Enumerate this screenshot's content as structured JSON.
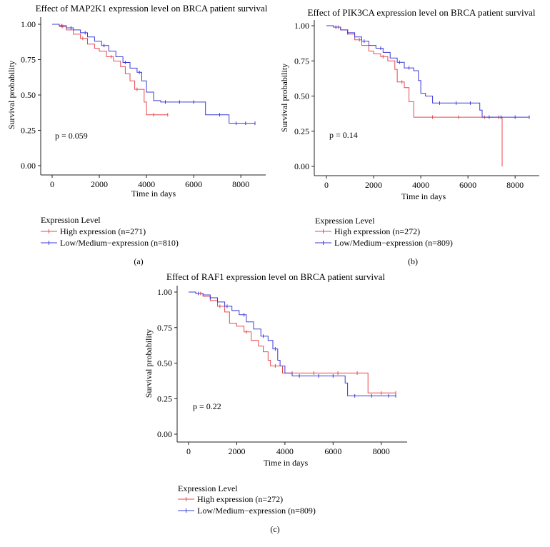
{
  "chart_data": [
    {
      "type": "line",
      "panel_label": "(a)",
      "title": "Effect of MAP2K1 expression level on BRCA patient survival",
      "xlabel": "Time in days",
      "ylabel": "Survival probability",
      "xlim": [
        0,
        8600
      ],
      "ylim": [
        0,
        1
      ],
      "xticks": [
        0,
        2000,
        4000,
        6000,
        8000
      ],
      "xtick_labels": [
        "0",
        "2000",
        "4000",
        "6000",
        "8000"
      ],
      "yticks": [
        0,
        0.25,
        0.5,
        0.75,
        1.0
      ],
      "ytick_labels": [
        "0.00",
        "0.25",
        "0.50",
        "0.75",
        "1.00"
      ],
      "pvalue_text": "p = 0.059",
      "legend_title": "Expression Level",
      "legend_position": "bottom",
      "series": [
        {
          "name": "High expression (n=271)",
          "color": "#e8474e",
          "points": [
            [
              0,
              1.0
            ],
            [
              300,
              0.985
            ],
            [
              600,
              0.96
            ],
            [
              900,
              0.93
            ],
            [
              1200,
              0.9
            ],
            [
              1500,
              0.86
            ],
            [
              1800,
              0.83
            ],
            [
              2000,
              0.81
            ],
            [
              2300,
              0.77
            ],
            [
              2600,
              0.74
            ],
            [
              2900,
              0.7
            ],
            [
              3100,
              0.65
            ],
            [
              3300,
              0.6
            ],
            [
              3500,
              0.54
            ],
            [
              3800,
              0.54
            ],
            [
              3900,
              0.45
            ],
            [
              4000,
              0.36
            ],
            [
              4900,
              0.36
            ]
          ],
          "censor_x": [
            450,
            1300,
            2500,
            3600,
            4300,
            4900
          ]
        },
        {
          "name": "Low/Medium−expression (n=810)",
          "color": "#3b3bd6",
          "points": [
            [
              0,
              1.0
            ],
            [
              300,
              0.99
            ],
            [
              600,
              0.975
            ],
            [
              900,
              0.96
            ],
            [
              1200,
              0.94
            ],
            [
              1500,
              0.91
            ],
            [
              1800,
              0.88
            ],
            [
              2100,
              0.85
            ],
            [
              2400,
              0.81
            ],
            [
              2700,
              0.77
            ],
            [
              3000,
              0.73
            ],
            [
              3300,
              0.69
            ],
            [
              3600,
              0.66
            ],
            [
              3800,
              0.6
            ],
            [
              4000,
              0.52
            ],
            [
              4300,
              0.46
            ],
            [
              4600,
              0.45
            ],
            [
              6300,
              0.45
            ],
            [
              6500,
              0.36
            ],
            [
              7200,
              0.36
            ],
            [
              7500,
              0.3
            ],
            [
              8600,
              0.3
            ]
          ],
          "censor_x": [
            400,
            800,
            1400,
            2200,
            3100,
            3700,
            4800,
            5400,
            6000,
            7100,
            7800,
            8200,
            8600
          ]
        }
      ]
    },
    {
      "type": "line",
      "panel_label": "(b)",
      "title": "Effect of PIK3CA expression level on BRCA patient survival",
      "xlabel": "Time in days",
      "ylabel": "Survival probability",
      "xlim": [
        0,
        8600
      ],
      "ylim": [
        0,
        1
      ],
      "xticks": [
        0,
        2000,
        4000,
        6000,
        8000
      ],
      "xtick_labels": [
        "0",
        "2000",
        "4000",
        "6000",
        "8000"
      ],
      "yticks": [
        0,
        0.25,
        0.5,
        0.75,
        1.0
      ],
      "ytick_labels": [
        "0.00",
        "0.25",
        "0.50",
        "0.75",
        "1.00"
      ],
      "pvalue_text": "p = 0.14",
      "legend_title": "Expression Level",
      "legend_position": "bottom",
      "series": [
        {
          "name": "High expression (n=272)",
          "color": "#e8474e",
          "points": [
            [
              0,
              1.0
            ],
            [
              300,
              0.99
            ],
            [
              600,
              0.97
            ],
            [
              900,
              0.94
            ],
            [
              1200,
              0.9
            ],
            [
              1500,
              0.86
            ],
            [
              1800,
              0.82
            ],
            [
              2000,
              0.8
            ],
            [
              2300,
              0.78
            ],
            [
              2600,
              0.75
            ],
            [
              2900,
              0.69
            ],
            [
              3000,
              0.6
            ],
            [
              3300,
              0.56
            ],
            [
              3500,
              0.46
            ],
            [
              3700,
              0.35
            ],
            [
              7400,
              0.35
            ],
            [
              7450,
              0.0
            ]
          ],
          "censor_x": [
            500,
            1400,
            2400,
            3200,
            4500,
            5600,
            6700,
            7300
          ]
        },
        {
          "name": "Low/Medium−expression (n=809)",
          "color": "#3b3bd6",
          "points": [
            [
              0,
              1.0
            ],
            [
              300,
              0.99
            ],
            [
              600,
              0.97
            ],
            [
              900,
              0.95
            ],
            [
              1200,
              0.92
            ],
            [
              1500,
              0.89
            ],
            [
              1800,
              0.86
            ],
            [
              2100,
              0.84
            ],
            [
              2400,
              0.81
            ],
            [
              2700,
              0.77
            ],
            [
              3000,
              0.74
            ],
            [
              3300,
              0.7
            ],
            [
              3700,
              0.68
            ],
            [
              3900,
              0.61
            ],
            [
              4000,
              0.52
            ],
            [
              4200,
              0.5
            ],
            [
              4500,
              0.45
            ],
            [
              6300,
              0.45
            ],
            [
              6500,
              0.4
            ],
            [
              6600,
              0.35
            ],
            [
              8600,
              0.35
            ]
          ],
          "censor_x": [
            400,
            900,
            1600,
            2300,
            3100,
            3500,
            4800,
            5500,
            6100,
            6900,
            7400,
            8000,
            8600
          ]
        }
      ]
    },
    {
      "type": "line",
      "panel_label": "(c)",
      "title": "Effect of RAF1 expression level on BRCA patient survival",
      "xlabel": "Time in days",
      "ylabel": "Survival probability",
      "xlim": [
        0,
        8600
      ],
      "ylim": [
        0,
        1
      ],
      "xticks": [
        0,
        2000,
        4000,
        6000,
        8000
      ],
      "xtick_labels": [
        "0",
        "2000",
        "4000",
        "6000",
        "8000"
      ],
      "yticks": [
        0,
        0.25,
        0.5,
        0.75,
        1.0
      ],
      "ytick_labels": [
        "0.00",
        "0.25",
        "0.50",
        "0.75",
        "1.00"
      ],
      "pvalue_text": "p = 0.22",
      "legend_title": "Expression Level",
      "legend_position": "bottom",
      "series": [
        {
          "name": "High expression (n=272)",
          "color": "#e8474e",
          "points": [
            [
              0,
              1.0
            ],
            [
              300,
              0.99
            ],
            [
              600,
              0.97
            ],
            [
              900,
              0.94
            ],
            [
              1200,
              0.9
            ],
            [
              1500,
              0.86
            ],
            [
              1700,
              0.78
            ],
            [
              2000,
              0.76
            ],
            [
              2300,
              0.72
            ],
            [
              2600,
              0.66
            ],
            [
              2900,
              0.62
            ],
            [
              3100,
              0.58
            ],
            [
              3300,
              0.52
            ],
            [
              3400,
              0.48
            ],
            [
              3800,
              0.48
            ],
            [
              3900,
              0.43
            ],
            [
              7400,
              0.43
            ],
            [
              7450,
              0.29
            ],
            [
              8600,
              0.29
            ]
          ],
          "censor_x": [
            500,
            1300,
            2400,
            3600,
            4300,
            5200,
            6200,
            7000,
            8000,
            8600
          ]
        },
        {
          "name": "Low/Medium−expression (n=809)",
          "color": "#3b3bd6",
          "points": [
            [
              0,
              1.0
            ],
            [
              300,
              0.99
            ],
            [
              600,
              0.98
            ],
            [
              900,
              0.96
            ],
            [
              1200,
              0.93
            ],
            [
              1500,
              0.9
            ],
            [
              1800,
              0.87
            ],
            [
              2100,
              0.84
            ],
            [
              2400,
              0.79
            ],
            [
              2700,
              0.74
            ],
            [
              3000,
              0.69
            ],
            [
              3300,
              0.66
            ],
            [
              3500,
              0.6
            ],
            [
              3700,
              0.52
            ],
            [
              3800,
              0.48
            ],
            [
              4000,
              0.43
            ],
            [
              4300,
              0.41
            ],
            [
              6500,
              0.36
            ],
            [
              6600,
              0.27
            ],
            [
              8600,
              0.27
            ]
          ],
          "censor_x": [
            400,
            900,
            1600,
            2300,
            3100,
            3600,
            4600,
            5400,
            6000,
            6900,
            7600,
            8300,
            8600
          ]
        }
      ]
    }
  ]
}
